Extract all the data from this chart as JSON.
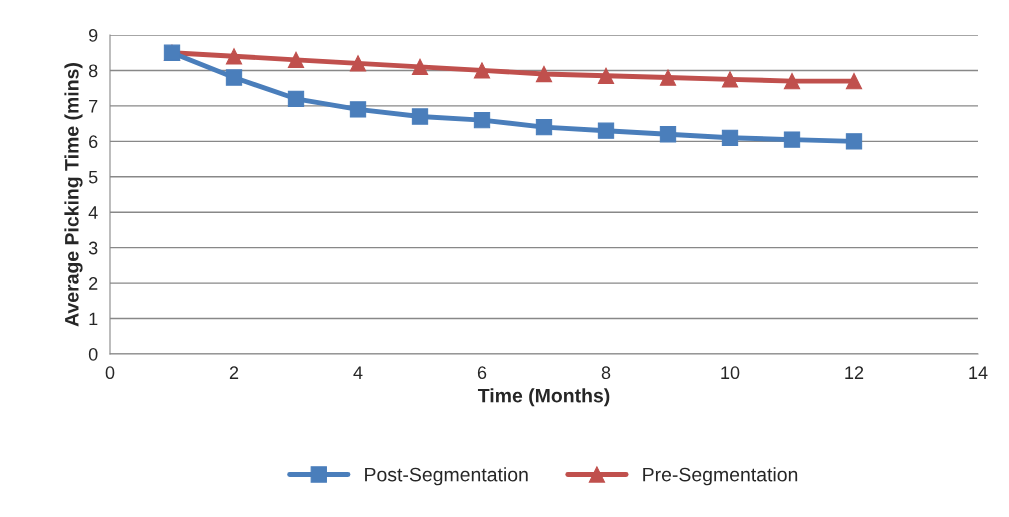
{
  "chart_data": {
    "type": "line",
    "xlabel": "Time (Months)",
    "ylabel": "Average Picking Time (mins)",
    "x": [
      1,
      2,
      3,
      4,
      5,
      6,
      7,
      8,
      9,
      10,
      11,
      12
    ],
    "series": [
      {
        "name": "Post-Segmentation",
        "color": "#4a7ebb",
        "marker": "square",
        "values": [
          8.5,
          7.8,
          7.2,
          6.9,
          6.7,
          6.6,
          6.4,
          6.3,
          6.2,
          6.1,
          6.05,
          6.0
        ]
      },
      {
        "name": "Pre-Segmentation",
        "color": "#c0504d",
        "marker": "triangle",
        "values": [
          8.5,
          8.4,
          8.3,
          8.2,
          8.1,
          8.0,
          7.9,
          7.85,
          7.8,
          7.75,
          7.7,
          7.7
        ]
      }
    ],
    "xlim": [
      0,
      14
    ],
    "xticks": [
      0,
      2,
      4,
      6,
      8,
      10,
      12,
      14
    ],
    "ylim": [
      0,
      9
    ],
    "yticks": [
      0,
      1,
      2,
      3,
      4,
      5,
      6,
      7,
      8,
      9
    ],
    "grid": "y",
    "legend": "bottom",
    "line_style": "solid"
  }
}
